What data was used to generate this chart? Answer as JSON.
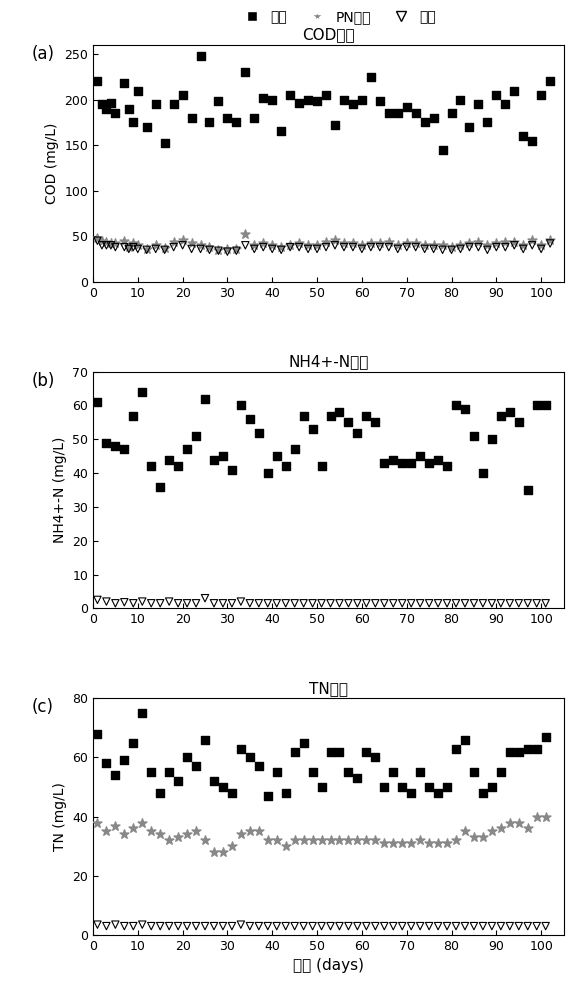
{
  "panel_a": {
    "title": "COD浓度",
    "ylabel": "COD (mg/L)",
    "ylim": [
      0,
      260
    ],
    "yticks": [
      0,
      50,
      100,
      150,
      200,
      250
    ],
    "influent": [
      [
        1,
        220
      ],
      [
        2,
        195
      ],
      [
        3,
        190
      ],
      [
        4,
        196
      ],
      [
        5,
        185
      ],
      [
        7,
        218
      ],
      [
        8,
        190
      ],
      [
        9,
        175
      ],
      [
        10,
        210
      ],
      [
        12,
        170
      ],
      [
        14,
        195
      ],
      [
        16,
        152
      ],
      [
        18,
        195
      ],
      [
        20,
        205
      ],
      [
        22,
        180
      ],
      [
        24,
        248
      ],
      [
        26,
        175
      ],
      [
        28,
        198
      ],
      [
        30,
        180
      ],
      [
        32,
        175
      ],
      [
        34,
        230
      ],
      [
        36,
        180
      ],
      [
        38,
        202
      ],
      [
        40,
        200
      ],
      [
        42,
        165
      ],
      [
        44,
        205
      ],
      [
        46,
        196
      ],
      [
        48,
        200
      ],
      [
        50,
        198
      ],
      [
        52,
        205
      ],
      [
        54,
        172
      ],
      [
        56,
        200
      ],
      [
        58,
        195
      ],
      [
        60,
        200
      ],
      [
        62,
        225
      ],
      [
        64,
        198
      ],
      [
        66,
        185
      ],
      [
        68,
        185
      ],
      [
        70,
        192
      ],
      [
        72,
        185
      ],
      [
        74,
        175
      ],
      [
        76,
        180
      ],
      [
        78,
        145
      ],
      [
        80,
        185
      ],
      [
        82,
        200
      ],
      [
        84,
        170
      ],
      [
        86,
        195
      ],
      [
        88,
        175
      ],
      [
        90,
        205
      ],
      [
        92,
        195
      ],
      [
        94,
        210
      ],
      [
        96,
        160
      ],
      [
        98,
        155
      ],
      [
        100,
        205
      ],
      [
        102,
        220
      ]
    ],
    "pn_out": [
      [
        1,
        48
      ],
      [
        2,
        45
      ],
      [
        3,
        44
      ],
      [
        4,
        43
      ],
      [
        5,
        42
      ],
      [
        7,
        45
      ],
      [
        8,
        38
      ],
      [
        9,
        42
      ],
      [
        10,
        40
      ],
      [
        12,
        36
      ],
      [
        14,
        40
      ],
      [
        16,
        37
      ],
      [
        18,
        44
      ],
      [
        20,
        46
      ],
      [
        22,
        42
      ],
      [
        24,
        40
      ],
      [
        26,
        38
      ],
      [
        28,
        35
      ],
      [
        30,
        36
      ],
      [
        32,
        36
      ],
      [
        34,
        52
      ],
      [
        36,
        40
      ],
      [
        38,
        42
      ],
      [
        40,
        40
      ],
      [
        42,
        38
      ],
      [
        44,
        40
      ],
      [
        46,
        42
      ],
      [
        48,
        40
      ],
      [
        50,
        40
      ],
      [
        52,
        44
      ],
      [
        54,
        46
      ],
      [
        56,
        42
      ],
      [
        58,
        42
      ],
      [
        60,
        40
      ],
      [
        62,
        42
      ],
      [
        64,
        42
      ],
      [
        66,
        44
      ],
      [
        68,
        40
      ],
      [
        70,
        42
      ],
      [
        72,
        42
      ],
      [
        74,
        40
      ],
      [
        76,
        40
      ],
      [
        78,
        40
      ],
      [
        80,
        38
      ],
      [
        82,
        40
      ],
      [
        84,
        42
      ],
      [
        86,
        44
      ],
      [
        88,
        40
      ],
      [
        90,
        42
      ],
      [
        92,
        44
      ],
      [
        94,
        44
      ],
      [
        96,
        40
      ],
      [
        98,
        46
      ],
      [
        100,
        40
      ],
      [
        102,
        46
      ]
    ],
    "effluent": [
      [
        1,
        45
      ],
      [
        2,
        40
      ],
      [
        3,
        40
      ],
      [
        4,
        40
      ],
      [
        5,
        38
      ],
      [
        7,
        38
      ],
      [
        8,
        36
      ],
      [
        9,
        38
      ],
      [
        10,
        36
      ],
      [
        12,
        35
      ],
      [
        14,
        36
      ],
      [
        16,
        35
      ],
      [
        18,
        38
      ],
      [
        20,
        40
      ],
      [
        22,
        36
      ],
      [
        24,
        36
      ],
      [
        26,
        35
      ],
      [
        28,
        34
      ],
      [
        30,
        33
      ],
      [
        32,
        34
      ],
      [
        34,
        40
      ],
      [
        36,
        36
      ],
      [
        38,
        38
      ],
      [
        40,
        36
      ],
      [
        42,
        35
      ],
      [
        44,
        38
      ],
      [
        46,
        38
      ],
      [
        48,
        36
      ],
      [
        50,
        36
      ],
      [
        52,
        38
      ],
      [
        54,
        40
      ],
      [
        56,
        38
      ],
      [
        58,
        38
      ],
      [
        60,
        36
      ],
      [
        62,
        38
      ],
      [
        64,
        38
      ],
      [
        66,
        38
      ],
      [
        68,
        36
      ],
      [
        70,
        38
      ],
      [
        72,
        38
      ],
      [
        74,
        36
      ],
      [
        76,
        36
      ],
      [
        78,
        35
      ],
      [
        80,
        35
      ],
      [
        82,
        36
      ],
      [
        84,
        38
      ],
      [
        86,
        38
      ],
      [
        88,
        35
      ],
      [
        90,
        38
      ],
      [
        92,
        38
      ],
      [
        94,
        40
      ],
      [
        96,
        36
      ],
      [
        98,
        40
      ],
      [
        100,
        36
      ],
      [
        102,
        42
      ]
    ]
  },
  "panel_b": {
    "title": "NH4+-N浓度",
    "ylabel": "NH4+-N (mg/L)",
    "ylim": [
      0,
      70
    ],
    "yticks": [
      0,
      10,
      20,
      30,
      40,
      50,
      60,
      70
    ],
    "influent": [
      [
        1,
        61
      ],
      [
        3,
        49
      ],
      [
        5,
        48
      ],
      [
        7,
        47
      ],
      [
        9,
        57
      ],
      [
        11,
        64
      ],
      [
        13,
        42
      ],
      [
        15,
        36
      ],
      [
        17,
        44
      ],
      [
        19,
        42
      ],
      [
        21,
        47
      ],
      [
        23,
        51
      ],
      [
        25,
        62
      ],
      [
        27,
        44
      ],
      [
        29,
        45
      ],
      [
        31,
        41
      ],
      [
        33,
        60
      ],
      [
        35,
        56
      ],
      [
        37,
        52
      ],
      [
        39,
        40
      ],
      [
        41,
        45
      ],
      [
        43,
        42
      ],
      [
        45,
        47
      ],
      [
        47,
        57
      ],
      [
        49,
        53
      ],
      [
        51,
        42
      ],
      [
        53,
        57
      ],
      [
        55,
        58
      ],
      [
        57,
        55
      ],
      [
        59,
        52
      ],
      [
        61,
        57
      ],
      [
        63,
        55
      ],
      [
        65,
        43
      ],
      [
        67,
        44
      ],
      [
        69,
        43
      ],
      [
        71,
        43
      ],
      [
        73,
        45
      ],
      [
        75,
        43
      ],
      [
        77,
        44
      ],
      [
        79,
        42
      ],
      [
        81,
        60
      ],
      [
        83,
        59
      ],
      [
        85,
        51
      ],
      [
        87,
        40
      ],
      [
        89,
        50
      ],
      [
        91,
        57
      ],
      [
        93,
        58
      ],
      [
        95,
        55
      ],
      [
        97,
        35
      ],
      [
        99,
        60
      ],
      [
        101,
        60
      ]
    ],
    "effluent": [
      [
        1,
        2.5
      ],
      [
        3,
        2
      ],
      [
        5,
        1.5
      ],
      [
        7,
        1.8
      ],
      [
        9,
        1.5
      ],
      [
        11,
        2
      ],
      [
        13,
        1.5
      ],
      [
        15,
        1.5
      ],
      [
        17,
        2
      ],
      [
        19,
        1.5
      ],
      [
        21,
        1.5
      ],
      [
        23,
        1.5
      ],
      [
        25,
        3
      ],
      [
        27,
        1.5
      ],
      [
        29,
        1.5
      ],
      [
        31,
        1.5
      ],
      [
        33,
        2
      ],
      [
        35,
        1.5
      ],
      [
        37,
        1.5
      ],
      [
        39,
        1.5
      ],
      [
        41,
        1.5
      ],
      [
        43,
        1.5
      ],
      [
        45,
        1.5
      ],
      [
        47,
        1.5
      ],
      [
        49,
        1.5
      ],
      [
        51,
        1.5
      ],
      [
        53,
        1.5
      ],
      [
        55,
        1.5
      ],
      [
        57,
        1.5
      ],
      [
        59,
        1.5
      ],
      [
        61,
        1.5
      ],
      [
        63,
        1.5
      ],
      [
        65,
        1.5
      ],
      [
        67,
        1.5
      ],
      [
        69,
        1.5
      ],
      [
        71,
        1.5
      ],
      [
        73,
        1.5
      ],
      [
        75,
        1.5
      ],
      [
        77,
        1.5
      ],
      [
        79,
        1.5
      ],
      [
        81,
        1.5
      ],
      [
        83,
        1.5
      ],
      [
        85,
        1.5
      ],
      [
        87,
        1.5
      ],
      [
        89,
        1.5
      ],
      [
        91,
        1.5
      ],
      [
        93,
        1.5
      ],
      [
        95,
        1.5
      ],
      [
        97,
        1.5
      ],
      [
        99,
        1.5
      ],
      [
        101,
        1.5
      ]
    ]
  },
  "panel_c": {
    "title": "TN浓度",
    "ylabel": "TN (mg/L)",
    "ylim": [
      0,
      80
    ],
    "yticks": [
      0,
      20,
      40,
      60,
      80
    ],
    "influent": [
      [
        1,
        68
      ],
      [
        3,
        58
      ],
      [
        5,
        54
      ],
      [
        7,
        59
      ],
      [
        9,
        65
      ],
      [
        11,
        75
      ],
      [
        13,
        55
      ],
      [
        15,
        48
      ],
      [
        17,
        55
      ],
      [
        19,
        52
      ],
      [
        21,
        60
      ],
      [
        23,
        57
      ],
      [
        25,
        66
      ],
      [
        27,
        52
      ],
      [
        29,
        50
      ],
      [
        31,
        48
      ],
      [
        33,
        63
      ],
      [
        35,
        60
      ],
      [
        37,
        57
      ],
      [
        39,
        47
      ],
      [
        41,
        55
      ],
      [
        43,
        48
      ],
      [
        45,
        62
      ],
      [
        47,
        65
      ],
      [
        49,
        55
      ],
      [
        51,
        50
      ],
      [
        53,
        62
      ],
      [
        55,
        62
      ],
      [
        57,
        55
      ],
      [
        59,
        53
      ],
      [
        61,
        62
      ],
      [
        63,
        60
      ],
      [
        65,
        50
      ],
      [
        67,
        55
      ],
      [
        69,
        50
      ],
      [
        71,
        48
      ],
      [
        73,
        55
      ],
      [
        75,
        50
      ],
      [
        77,
        48
      ],
      [
        79,
        50
      ],
      [
        81,
        63
      ],
      [
        83,
        66
      ],
      [
        85,
        55
      ],
      [
        87,
        48
      ],
      [
        89,
        50
      ],
      [
        91,
        55
      ],
      [
        93,
        62
      ],
      [
        95,
        62
      ],
      [
        97,
        63
      ],
      [
        99,
        63
      ],
      [
        101,
        67
      ]
    ],
    "pn_out": [
      [
        1,
        38
      ],
      [
        3,
        35
      ],
      [
        5,
        37
      ],
      [
        7,
        34
      ],
      [
        9,
        36
      ],
      [
        11,
        38
      ],
      [
        13,
        35
      ],
      [
        15,
        34
      ],
      [
        17,
        32
      ],
      [
        19,
        33
      ],
      [
        21,
        34
      ],
      [
        23,
        35
      ],
      [
        25,
        32
      ],
      [
        27,
        28
      ],
      [
        29,
        28
      ],
      [
        31,
        30
      ],
      [
        33,
        34
      ],
      [
        35,
        35
      ],
      [
        37,
        35
      ],
      [
        39,
        32
      ],
      [
        41,
        32
      ],
      [
        43,
        30
      ],
      [
        45,
        32
      ],
      [
        47,
        32
      ],
      [
        49,
        32
      ],
      [
        51,
        32
      ],
      [
        53,
        32
      ],
      [
        55,
        32
      ],
      [
        57,
        32
      ],
      [
        59,
        32
      ],
      [
        61,
        32
      ],
      [
        63,
        32
      ],
      [
        65,
        31
      ],
      [
        67,
        31
      ],
      [
        69,
        31
      ],
      [
        71,
        31
      ],
      [
        73,
        32
      ],
      [
        75,
        31
      ],
      [
        77,
        31
      ],
      [
        79,
        31
      ],
      [
        81,
        32
      ],
      [
        83,
        35
      ],
      [
        85,
        33
      ],
      [
        87,
        33
      ],
      [
        89,
        35
      ],
      [
        91,
        36
      ],
      [
        93,
        38
      ],
      [
        95,
        38
      ],
      [
        97,
        36
      ],
      [
        99,
        40
      ],
      [
        101,
        40
      ]
    ],
    "effluent": [
      [
        1,
        3.5
      ],
      [
        3,
        3
      ],
      [
        5,
        3.5
      ],
      [
        7,
        3
      ],
      [
        9,
        3
      ],
      [
        11,
        3.5
      ],
      [
        13,
        3
      ],
      [
        15,
        3
      ],
      [
        17,
        3
      ],
      [
        19,
        3
      ],
      [
        21,
        3
      ],
      [
        23,
        3
      ],
      [
        25,
        3
      ],
      [
        27,
        3
      ],
      [
        29,
        3
      ],
      [
        31,
        3
      ],
      [
        33,
        3.5
      ],
      [
        35,
        3
      ],
      [
        37,
        3
      ],
      [
        39,
        3
      ],
      [
        41,
        3
      ],
      [
        43,
        3
      ],
      [
        45,
        3
      ],
      [
        47,
        3
      ],
      [
        49,
        3
      ],
      [
        51,
        3
      ],
      [
        53,
        3
      ],
      [
        55,
        3
      ],
      [
        57,
        3
      ],
      [
        59,
        3
      ],
      [
        61,
        3
      ],
      [
        63,
        3
      ],
      [
        65,
        3
      ],
      [
        67,
        3
      ],
      [
        69,
        3
      ],
      [
        71,
        3
      ],
      [
        73,
        3
      ],
      [
        75,
        3
      ],
      [
        77,
        3
      ],
      [
        79,
        3
      ],
      [
        81,
        3
      ],
      [
        83,
        3
      ],
      [
        85,
        3
      ],
      [
        87,
        3
      ],
      [
        89,
        3
      ],
      [
        91,
        3
      ],
      [
        93,
        3
      ],
      [
        95,
        3
      ],
      [
        97,
        3
      ],
      [
        99,
        3
      ],
      [
        101,
        3
      ]
    ]
  },
  "xlim": [
    0,
    105
  ],
  "xticks": [
    0,
    10,
    20,
    30,
    40,
    50,
    60,
    70,
    80,
    90,
    100
  ],
  "xlabel_cn": "时间",
  "xlabel_en": " (days)",
  "legend_label_inf": "进水",
  "legend_label_pn": "PN出水",
  "legend_label_eff": "出水",
  "background_color": "#ffffff"
}
